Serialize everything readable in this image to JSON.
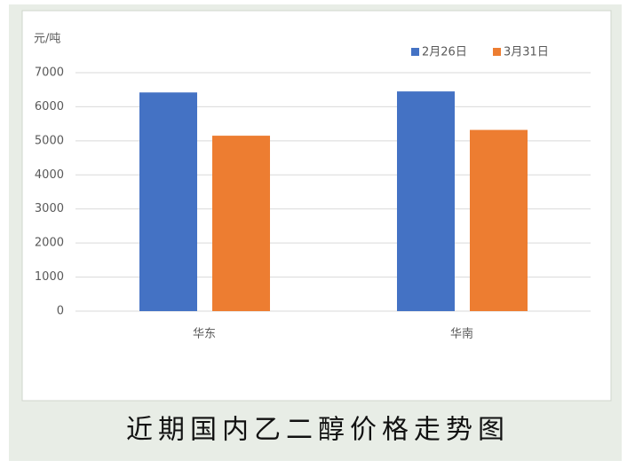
{
  "chart_data": {
    "type": "bar",
    "title": "近期国内乙二醇价格走势图",
    "y_label": "元/吨",
    "categories": [
      "华东",
      "华南"
    ],
    "series": [
      {
        "name": "2月26日",
        "color": "#4472c4",
        "values": [
          6420,
          6450
        ]
      },
      {
        "name": "3月31日",
        "color": "#ed7d31",
        "values": [
          5150,
          5320
        ]
      }
    ],
    "ylim": [
      0,
      7000
    ],
    "yticks": [
      0,
      1000,
      2000,
      3000,
      4000,
      5000,
      6000,
      7000
    ],
    "grid": true,
    "legend": "top-right"
  }
}
